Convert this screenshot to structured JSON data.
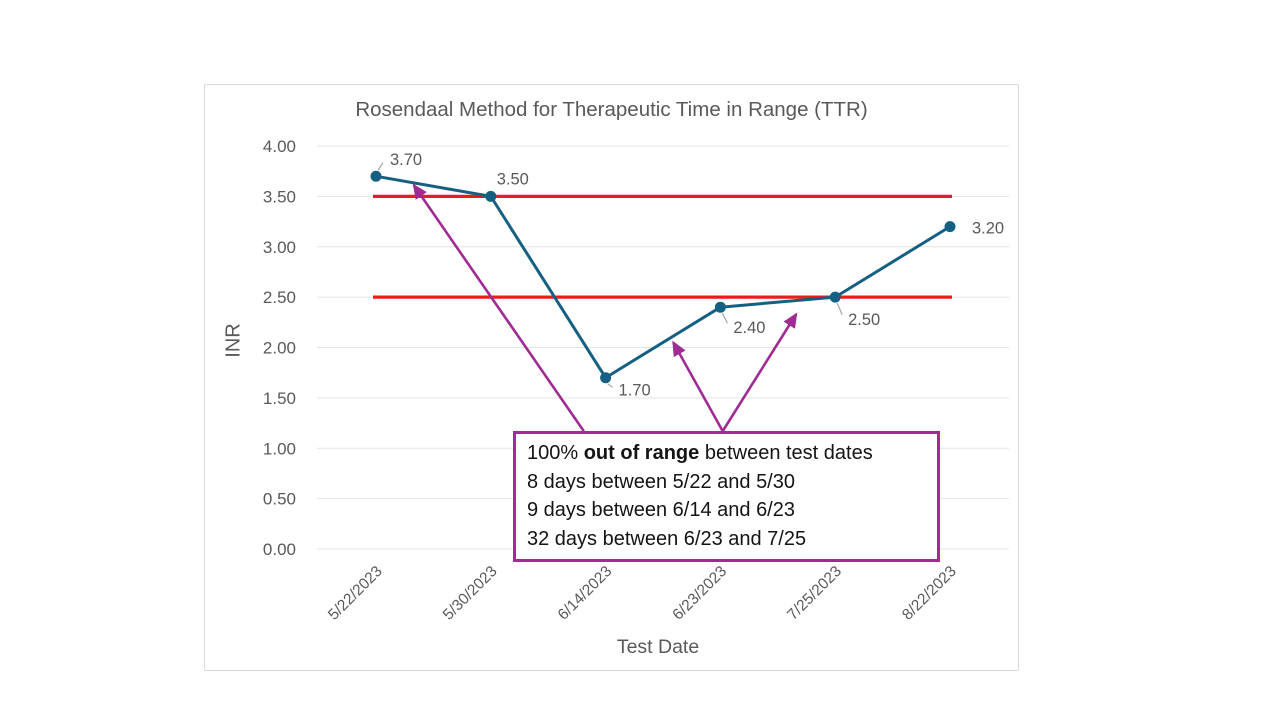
{
  "chart_data": {
    "type": "line",
    "title": "Rosendaal Method for Therapeutic Time in Range (TTR)",
    "xlabel": "Test Date",
    "ylabel": "INR",
    "categories": [
      "5/22/2023",
      "5/30/2023",
      "6/14/2023",
      "6/23/2023",
      "7/25/2023",
      "8/22/2023"
    ],
    "series": [
      {
        "name": "INR",
        "values": [
          3.7,
          3.5,
          1.7,
          2.4,
          2.5,
          3.2
        ],
        "color": "#156082"
      }
    ],
    "data_labels": [
      "3.70",
      "3.50",
      "1.70",
      "2.40",
      "2.50",
      "3.20"
    ],
    "ylim": [
      0,
      4
    ],
    "ytick_step": 0.5,
    "ytick_labels": [
      "0.00",
      "0.50",
      "1.00",
      "1.50",
      "2.00",
      "2.50",
      "3.00",
      "3.50",
      "4.00"
    ],
    "grid": true,
    "legend": "none",
    "range_lines": {
      "values": [
        3.5,
        2.5
      ],
      "color": "#ED1C1C",
      "meaning": "therapeutic range bounds"
    },
    "annotation": {
      "border_color": "#A02B93",
      "line1_prefix": "100% ",
      "line1_bold": "out of range",
      "line1_suffix": " between test dates",
      "lines": [
        "8 days between 5/22 and 5/30",
        "9 days between 6/14 and 6/23",
        "32 days between 6/23 and 7/25"
      ],
      "arrows": [
        {
          "from_x": 1.81,
          "from_y": 1.17,
          "to_x": 0.33,
          "to_y": 3.61
        },
        {
          "from_x": 3.02,
          "from_y": 1.17,
          "to_x": 2.59,
          "to_y": 2.05
        },
        {
          "from_x": 3.02,
          "from_y": 1.17,
          "to_x": 3.66,
          "to_y": 2.33
        }
      ]
    },
    "colors": {
      "axis_text": "#595959",
      "grid": "#E4E4E4",
      "leader": "#A6A6A6",
      "line": "#156082",
      "range_line": "#ED1C1C",
      "arrow": "#A02B93"
    }
  }
}
